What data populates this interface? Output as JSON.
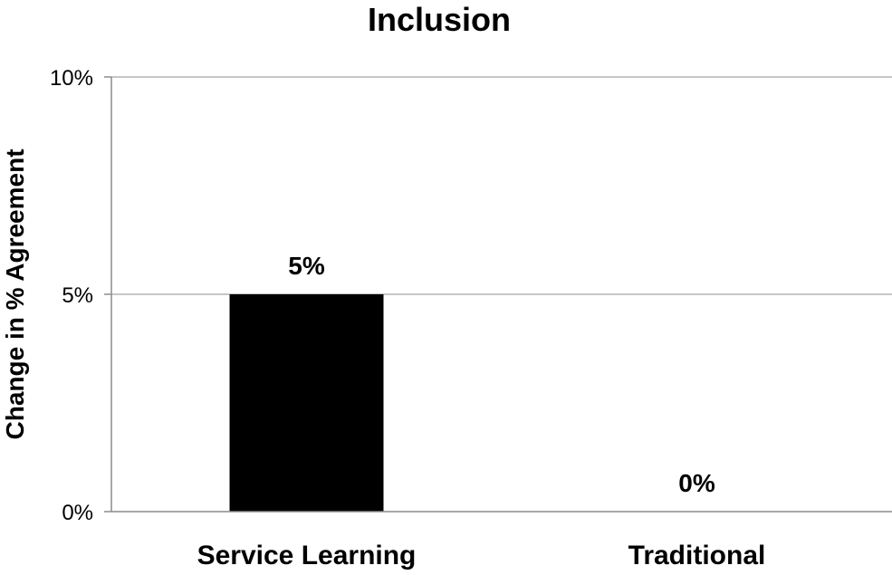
{
  "chart_data": {
    "type": "bar",
    "title": "Inclusion",
    "xlabel": "",
    "ylabel": "Change in % Agreement",
    "categories": [
      "Service Learning",
      "Traditional"
    ],
    "values": [
      5,
      0
    ],
    "data_labels": [
      "5%",
      "0%"
    ],
    "ylim": [
      0,
      10
    ],
    "yticks": [
      0,
      5,
      10
    ],
    "ytick_labels": [
      "0%",
      "5%",
      "10%"
    ],
    "grid": true,
    "legend": "none",
    "bar_color": "#000000"
  }
}
